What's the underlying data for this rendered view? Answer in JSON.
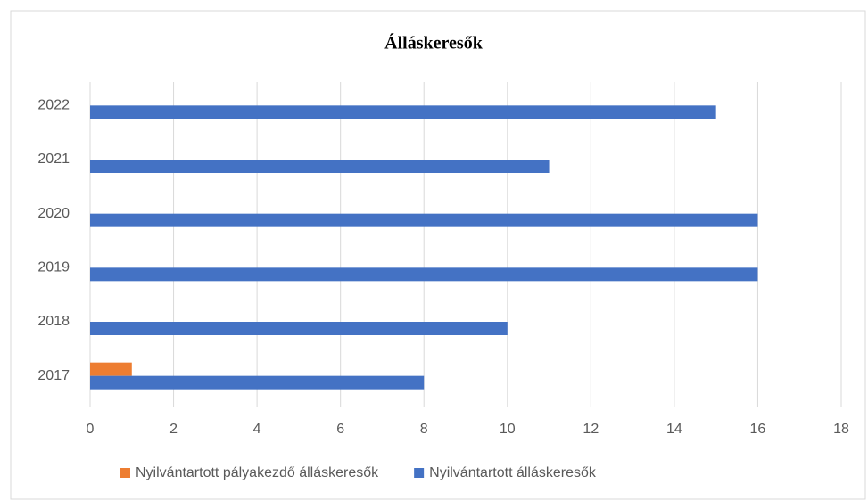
{
  "chart_data": {
    "type": "hbar",
    "title": "Álláskeresők",
    "categories": [
      "2017",
      "2018",
      "2019",
      "2020",
      "2021",
      "2022"
    ],
    "series": [
      {
        "name": "Nyilvántartott pályakezdő álláskeresők",
        "color": "#ed7d31",
        "values": [
          1,
          0,
          0,
          0,
          0,
          0
        ]
      },
      {
        "name": "Nyilvántartott álláskeresők",
        "color": "#4472c4",
        "values": [
          8,
          10,
          16,
          16,
          11,
          15
        ]
      }
    ],
    "xlim": [
      0,
      18
    ],
    "xticks": [
      0,
      2,
      4,
      6,
      8,
      10,
      12,
      14,
      16,
      18
    ],
    "grid": true,
    "legend": "bottom"
  }
}
